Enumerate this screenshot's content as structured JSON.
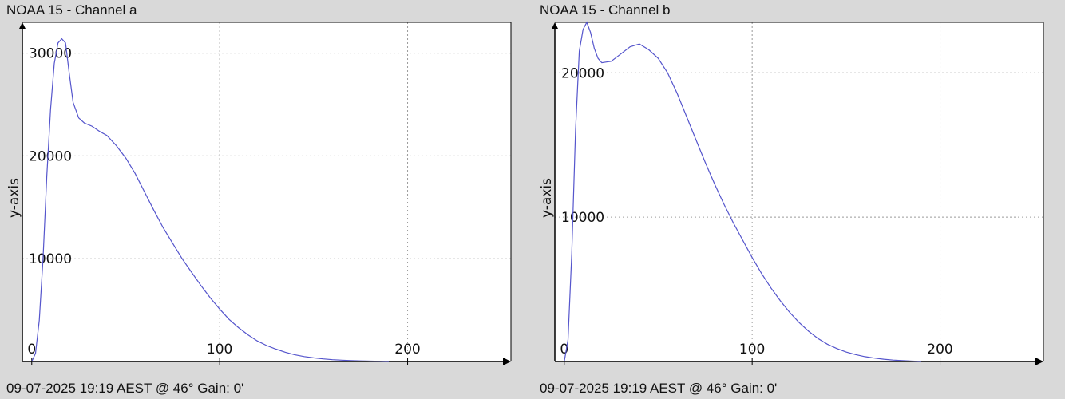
{
  "panels": [
    {
      "title": "NOAA 15 - Channel a",
      "footer": "09-07-2025 19:19 AEST @ 46° Gain: 0'",
      "ylabel": "y-axis"
    },
    {
      "title": "NOAA 15 - Channel b",
      "footer": "09-07-2025 19:19 AEST @ 46° Gain: 0'",
      "ylabel": "y-axis"
    }
  ],
  "chart_data": [
    {
      "type": "line",
      "title": "NOAA 15 - Channel a",
      "ylabel": "y-axis",
      "xlim": [
        -5,
        255
      ],
      "ylim": [
        0,
        33000
      ],
      "grid": true,
      "x_ticks": [
        0,
        100,
        200
      ],
      "y_ticks": [
        10000,
        20000,
        30000
      ],
      "x": [
        0,
        2,
        4,
        6,
        8,
        10,
        12,
        14,
        16,
        18,
        20,
        22,
        25,
        28,
        32,
        36,
        40,
        45,
        50,
        55,
        60,
        65,
        70,
        75,
        80,
        85,
        90,
        95,
        100,
        105,
        110,
        115,
        120,
        125,
        130,
        135,
        140,
        145,
        150,
        155,
        160,
        165,
        170,
        175,
        180,
        185,
        190
      ],
      "y": [
        0,
        800,
        4000,
        10000,
        18000,
        24500,
        29000,
        31000,
        31400,
        31000,
        28000,
        25200,
        23700,
        23200,
        22900,
        22400,
        22000,
        21000,
        19800,
        18300,
        16500,
        14700,
        13000,
        11500,
        10000,
        8700,
        7400,
        6200,
        5100,
        4100,
        3300,
        2600,
        2000,
        1550,
        1200,
        900,
        650,
        480,
        360,
        260,
        180,
        130,
        90,
        60,
        40,
        20,
        0
      ]
    },
    {
      "type": "line",
      "title": "NOAA 15 - Channel b",
      "ylabel": "y-axis",
      "xlim": [
        -5,
        255
      ],
      "ylim": [
        0,
        23500
      ],
      "grid": true,
      "x_ticks": [
        0,
        100,
        200
      ],
      "y_ticks": [
        10000,
        20000
      ],
      "x": [
        0,
        2,
        4,
        6,
        8,
        10,
        12,
        14,
        16,
        18,
        20,
        25,
        30,
        35,
        40,
        45,
        50,
        55,
        60,
        65,
        70,
        75,
        80,
        85,
        90,
        95,
        100,
        105,
        110,
        115,
        120,
        125,
        130,
        135,
        140,
        145,
        150,
        155,
        160,
        165,
        170,
        175,
        180,
        185,
        190
      ],
      "y": [
        0,
        1500,
        7500,
        16000,
        21500,
        23000,
        23500,
        22800,
        21700,
        21000,
        20700,
        20800,
        21300,
        21800,
        22000,
        21600,
        21000,
        20000,
        18600,
        17000,
        15400,
        13800,
        12300,
        10900,
        9600,
        8400,
        7200,
        6100,
        5100,
        4200,
        3400,
        2700,
        2100,
        1600,
        1200,
        900,
        660,
        480,
        340,
        240,
        160,
        100,
        60,
        30,
        0
      ]
    }
  ]
}
